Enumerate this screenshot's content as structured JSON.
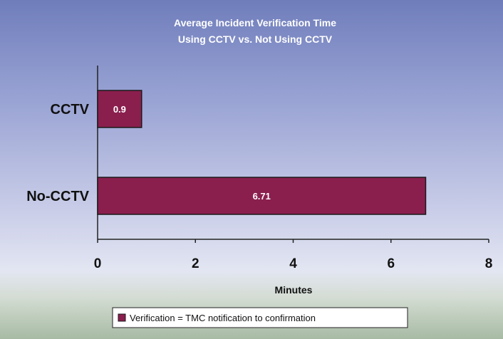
{
  "chart_data": {
    "type": "bar",
    "orientation": "horizontal",
    "title": "Average Incident Verification Time",
    "subtitle": "Using CCTV vs. Not Using CCTV",
    "categories": [
      "CCTV",
      "No-CCTV"
    ],
    "series": [
      {
        "name": "Verification = TMC notification to confirmation",
        "values": [
          0.9,
          6.71
        ]
      }
    ],
    "data_labels": [
      "0.9",
      "6.71"
    ],
    "xlabel": "Minutes",
    "ylabel": "",
    "xlim": [
      0,
      8
    ],
    "xticks": [
      0,
      2,
      4,
      6,
      8
    ],
    "grid": false,
    "legend_position": "bottom",
    "colors": {
      "bar": "#8a1f4e",
      "bar_border": "#1a1a1a",
      "title": "#ffffff"
    }
  }
}
